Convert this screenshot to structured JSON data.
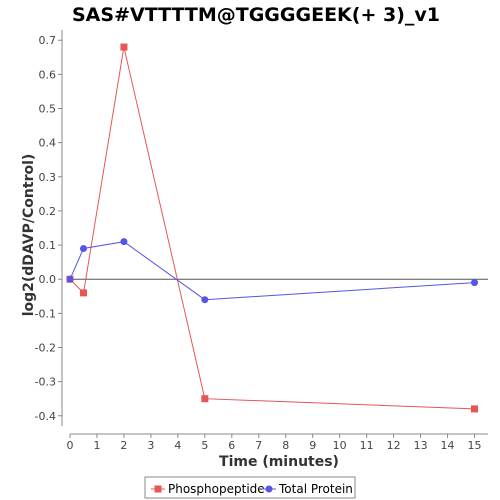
{
  "chart_data": {
    "type": "line",
    "title": "SAS#VTTTTM@TGGGGEEK(+ 3)_v1",
    "xlabel": "Time (minutes)",
    "ylabel": "log2(dDAVP/Control)",
    "xlim": [
      0,
      15.5
    ],
    "ylim": [
      -0.43,
      0.73
    ],
    "x_ticks": [
      0,
      1,
      2,
      3,
      4,
      5,
      6,
      7,
      8,
      9,
      10,
      11,
      12,
      13,
      14,
      15
    ],
    "y_ticks": [
      -0.4,
      -0.3,
      -0.2,
      -0.1,
      0.0,
      0.1,
      0.2,
      0.3,
      0.4,
      0.5,
      0.6,
      0.7
    ],
    "x_tick_labels": [
      "0",
      "1",
      "2",
      "3",
      "4",
      "5",
      "6",
      "7",
      "8",
      "9",
      "10",
      "11",
      "12",
      "13",
      "14",
      "15"
    ],
    "y_tick_labels": [
      "-0.4",
      "-0.3",
      "-0.2",
      "-0.1",
      "0.0",
      "0.1",
      "0.2",
      "0.3",
      "0.4",
      "0.5",
      "0.6",
      "0.7"
    ],
    "grid": false,
    "zero_line": true,
    "legend_position": "bottom",
    "series": [
      {
        "name": "Phosphopeptide",
        "color": "#e85555",
        "marker": "square",
        "x": [
          0,
          0.5,
          2,
          5,
          15
        ],
        "y": [
          0.0,
          -0.04,
          0.68,
          -0.35,
          -0.38
        ]
      },
      {
        "name": "Total Protein",
        "color": "#5555e8",
        "marker": "circle",
        "x": [
          0,
          0.5,
          2,
          5,
          15
        ],
        "y": [
          0.0,
          0.09,
          0.11,
          -0.06,
          -0.01
        ]
      }
    ]
  }
}
